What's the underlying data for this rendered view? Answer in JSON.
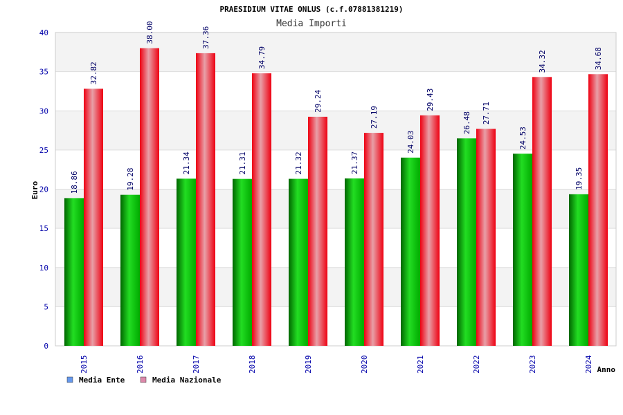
{
  "chart_data": {
    "type": "bar",
    "title": "PRAESIDIUM VITAE ONLUS (c.f.07881381219)",
    "subtitle": "Media Importi",
    "xlabel": "Anno",
    "ylabel": "Euro",
    "ylim": [
      0,
      40
    ],
    "yticks": [
      0,
      5,
      10,
      15,
      20,
      25,
      30,
      35,
      40
    ],
    "grid": true,
    "legend_position": "bottom-left",
    "categories": [
      "2015",
      "2016",
      "2017",
      "2018",
      "2019",
      "2020",
      "2021",
      "2022",
      "2023",
      "2024"
    ],
    "series": [
      {
        "name": "Media Ente",
        "color": "#00aa00",
        "legend_color": "#6699ee",
        "values": [
          18.86,
          19.28,
          21.34,
          21.31,
          21.32,
          21.37,
          24.03,
          26.48,
          24.53,
          19.35
        ],
        "labels": [
          "18.86",
          "19.28",
          "21.34",
          "21.31",
          "21.32",
          "21.37",
          "24.03",
          "26.48",
          "24.53",
          "19.35"
        ]
      },
      {
        "name": "Media Nazionale",
        "color": "#ee1122",
        "legend_color": "#dd88aa",
        "values": [
          32.82,
          38.0,
          37.36,
          34.79,
          29.24,
          27.19,
          29.43,
          27.71,
          34.32,
          34.68
        ],
        "labels": [
          "32.82",
          "38.00",
          "37.36",
          "34.79",
          "29.24",
          "27.19",
          "29.43",
          "27.71",
          "34.32",
          "34.68"
        ]
      }
    ]
  }
}
